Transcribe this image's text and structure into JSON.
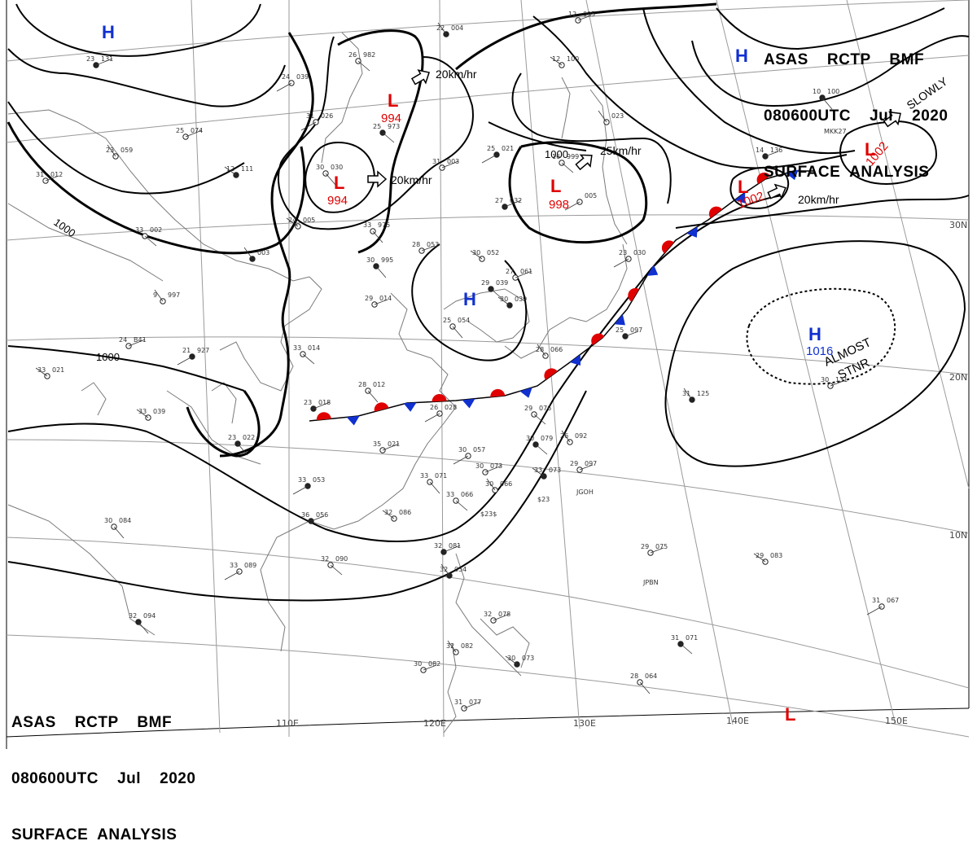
{
  "header": {
    "line1": "ASAS    RCTP    BMF",
    "line2": "080600UTC    Jul    2020",
    "line3": "SURFACE  ANALYSIS"
  },
  "longitudes": [
    "110E",
    "120E",
    "130E",
    "140E",
    "150E"
  ],
  "latitudes": [
    "30N",
    "20N",
    "10N"
  ],
  "isobar_labels": [
    "1000",
    "1000",
    "1000"
  ],
  "lows": [
    {
      "symbol": "L",
      "pressure": "994"
    },
    {
      "symbol": "L",
      "pressure": "994"
    },
    {
      "symbol": "L",
      "pressure": "998"
    },
    {
      "symbol": "L",
      "pressure": "1002"
    },
    {
      "symbol": "L",
      "pressure": "1002"
    },
    {
      "symbol": "L",
      "pressure": ""
    }
  ],
  "highs": [
    {
      "symbol": "H",
      "pressure": ""
    },
    {
      "symbol": "H",
      "pressure": ""
    },
    {
      "symbol": "H",
      "pressure": ""
    },
    {
      "symbol": "H",
      "pressure": "1016"
    }
  ],
  "motions": [
    "20km/hr",
    "20km/hr",
    "25km/hr",
    "20km/hr",
    "SLOWLY"
  ],
  "notes": [
    "ALMOST",
    "STNR"
  ],
  "colors": {
    "low": "#e00000",
    "high": "#1030d0",
    "front_warm": "#e00000",
    "front_cold": "#1030d0",
    "isobar": "#000000"
  },
  "stations": [
    {
      "t": "23",
      "p": "131"
    },
    {
      "t": "24",
      "p": "039"
    },
    {
      "t": "26",
      "p": "982"
    },
    {
      "t": "22",
      "p": "004"
    },
    {
      "t": "12",
      "p": "095"
    },
    {
      "t": "12",
      "p": "100"
    },
    {
      "t": "10",
      "p": "100"
    },
    {
      "t": "25",
      "p": "074"
    },
    {
      "t": "31",
      "p": "026"
    },
    {
      "t": "25",
      "p": "973"
    },
    {
      "t": "23",
      "p": "059"
    },
    {
      "t": "31",
      "p": "012"
    },
    {
      "t": "12",
      "p": "111"
    },
    {
      "t": "30",
      "p": "030"
    },
    {
      "t": "31",
      "p": "003"
    },
    {
      "t": "25",
      "p": "021"
    },
    {
      "t": "16",
      "p": "999"
    },
    {
      "t": "",
      "p": "023"
    },
    {
      "t": "14",
      "p": "136"
    },
    {
      "t": "24",
      "p": "005"
    },
    {
      "t": "33",
      "p": "975"
    },
    {
      "t": "27",
      "p": "032"
    },
    {
      "t": "",
      "p": "005"
    },
    {
      "t": "33",
      "p": "002"
    },
    {
      "t": "",
      "p": "003"
    },
    {
      "t": "28",
      "p": "053"
    },
    {
      "t": "30",
      "p": "052"
    },
    {
      "t": "30",
      "p": "995"
    },
    {
      "t": "27",
      "p": "061"
    },
    {
      "t": "23",
      "p": "030"
    },
    {
      "t": "29",
      "p": "039"
    },
    {
      "t": "9",
      "p": "997"
    },
    {
      "t": "29",
      "p": "014"
    },
    {
      "t": "30",
      "p": "039"
    },
    {
      "t": "25",
      "p": "054"
    },
    {
      "t": "24",
      "p": "B41"
    },
    {
      "t": "21",
      "p": "927"
    },
    {
      "t": "33",
      "p": "014"
    },
    {
      "t": "28",
      "p": "066"
    },
    {
      "t": "25",
      "p": "097"
    },
    {
      "t": "33",
      "p": "021"
    },
    {
      "t": "28",
      "p": "012"
    },
    {
      "t": "23",
      "p": "018"
    },
    {
      "t": "26",
      "p": "028"
    },
    {
      "t": "29",
      "p": "076"
    },
    {
      "t": "31",
      "p": "125"
    },
    {
      "t": "30",
      "p": "131"
    },
    {
      "t": "33",
      "p": "039"
    },
    {
      "t": "23",
      "p": "022"
    },
    {
      "t": "35",
      "p": "021"
    },
    {
      "t": "30",
      "p": "057"
    },
    {
      "t": "30",
      "p": "079"
    },
    {
      "t": "26",
      "p": "092"
    },
    {
      "t": "29",
      "p": "097"
    },
    {
      "t": "33",
      "p": "073"
    },
    {
      "t": "33",
      "p": "071"
    },
    {
      "t": "30",
      "p": "073"
    },
    {
      "t": "33",
      "p": "053"
    },
    {
      "t": "33",
      "p": "066"
    },
    {
      "t": "30",
      "p": "066"
    },
    {
      "t": "36",
      "p": "056"
    },
    {
      "t": "32",
      "p": "086"
    },
    {
      "t": "30",
      "p": "084"
    },
    {
      "t": "32",
      "p": "081"
    },
    {
      "t": "33",
      "p": "089"
    },
    {
      "t": "32",
      "p": "090"
    },
    {
      "t": "32",
      "p": "054"
    },
    {
      "t": "29",
      "p": "075"
    },
    {
      "t": "29",
      "p": "083"
    },
    {
      "t": "32",
      "p": "094"
    },
    {
      "t": "32",
      "p": "078"
    },
    {
      "t": "31",
      "p": "067"
    },
    {
      "t": "31",
      "p": "071"
    },
    {
      "t": "32",
      "p": "082"
    },
    {
      "t": "30",
      "p": "082"
    },
    {
      "t": "30",
      "p": "073"
    },
    {
      "t": "28",
      "p": "064"
    },
    {
      "t": "31",
      "p": "077"
    }
  ],
  "station_ids": [
    "MKK27",
    "JGOH",
    "JPBN",
    "$23",
    "$23$"
  ]
}
